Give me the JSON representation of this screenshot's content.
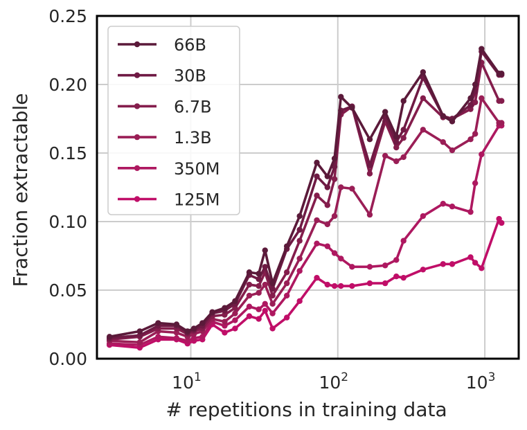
{
  "chart_data": {
    "type": "line",
    "xlabel": "# repetitions in training data",
    "ylabel": "Fraction extractable",
    "xscale": "log",
    "xlim": [
      2.3,
      1700
    ],
    "ylim": [
      0,
      0.25
    ],
    "x_ticks": [
      {
        "value": 10,
        "base": "10",
        "exp": "1"
      },
      {
        "value": 100,
        "base": "10",
        "exp": "2"
      },
      {
        "value": 1000,
        "base": "10",
        "exp": "3"
      }
    ],
    "y_ticks": [
      {
        "value": 0.0,
        "label": "0.00"
      },
      {
        "value": 0.05,
        "label": "0.05"
      },
      {
        "value": 0.1,
        "label": "0.10"
      },
      {
        "value": 0.15,
        "label": "0.15"
      },
      {
        "value": 0.2,
        "label": "0.20"
      },
      {
        "value": 0.25,
        "label": "0.25"
      }
    ],
    "grid": true,
    "legend_position": "top-left",
    "x": [
      2.8,
      4.5,
      6.0,
      8.0,
      9.5,
      10.5,
      12.0,
      14.0,
      17.0,
      20.0,
      25.0,
      29.0,
      32.0,
      36.0,
      45.0,
      55.0,
      72.0,
      85.0,
      95.0,
      105.0,
      125.0,
      165.0,
      210.0,
      250.0,
      280.0,
      380.0,
      520.0,
      600.0,
      800.0,
      860.0,
      950.0,
      1250.0,
      1300.0
    ],
    "series": [
      {
        "name": "66B",
        "color": "#5b1a3a",
        "values": [
          0.016,
          0.02,
          0.026,
          0.025,
          0.02,
          0.022,
          0.026,
          0.034,
          0.037,
          0.042,
          0.063,
          0.062,
          0.079,
          0.055,
          0.082,
          0.104,
          0.143,
          0.133,
          0.146,
          0.191,
          0.183,
          0.16,
          0.18,
          0.162,
          0.188,
          0.209,
          0.177,
          0.173,
          0.19,
          0.2,
          0.226,
          0.208,
          0.208
        ]
      },
      {
        "name": "30B",
        "color": "#6f1a44",
        "values": [
          0.015,
          0.017,
          0.024,
          0.024,
          0.019,
          0.021,
          0.024,
          0.033,
          0.035,
          0.04,
          0.061,
          0.058,
          0.067,
          0.051,
          0.08,
          0.094,
          0.133,
          0.125,
          0.14,
          0.181,
          0.184,
          0.141,
          0.176,
          0.158,
          0.167,
          0.205,
          0.177,
          0.175,
          0.185,
          0.195,
          0.224,
          0.207,
          0.207
        ]
      },
      {
        "name": "6.7B",
        "color": "#841d4c",
        "values": [
          0.014,
          0.016,
          0.022,
          0.022,
          0.018,
          0.02,
          0.022,
          0.031,
          0.032,
          0.037,
          0.054,
          0.053,
          0.063,
          0.046,
          0.063,
          0.086,
          0.119,
          0.112,
          0.131,
          0.178,
          0.184,
          0.135,
          0.173,
          0.154,
          0.161,
          0.19,
          0.176,
          0.175,
          0.182,
          0.187,
          0.216,
          0.188,
          0.188
        ]
      },
      {
        "name": "1.3B",
        "color": "#9a1e56",
        "values": [
          0.013,
          0.012,
          0.02,
          0.019,
          0.016,
          0.018,
          0.02,
          0.029,
          0.027,
          0.033,
          0.046,
          0.048,
          0.054,
          0.04,
          0.055,
          0.073,
          0.101,
          0.098,
          0.104,
          0.125,
          0.124,
          0.105,
          0.148,
          0.144,
          0.147,
          0.167,
          0.158,
          0.152,
          0.16,
          0.164,
          0.19,
          0.172,
          0.172
        ]
      },
      {
        "name": "350M",
        "color": "#ae1860",
        "values": [
          0.011,
          0.01,
          0.016,
          0.015,
          0.013,
          0.015,
          0.016,
          0.027,
          0.024,
          0.028,
          0.038,
          0.036,
          0.04,
          0.033,
          0.046,
          0.064,
          0.084,
          0.082,
          0.077,
          0.073,
          0.067,
          0.067,
          0.068,
          0.072,
          0.086,
          0.104,
          0.113,
          0.111,
          0.107,
          0.128,
          0.149,
          0.17,
          0.17
        ]
      },
      {
        "name": "125M",
        "color": "#c00e68",
        "values": [
          0.01,
          0.008,
          0.014,
          0.014,
          0.011,
          0.013,
          0.014,
          0.025,
          0.019,
          0.022,
          0.031,
          0.029,
          0.035,
          0.022,
          0.03,
          0.042,
          0.059,
          0.054,
          0.053,
          0.053,
          0.053,
          0.055,
          0.055,
          0.06,
          0.059,
          0.065,
          0.069,
          0.069,
          0.074,
          0.07,
          0.066,
          0.102,
          0.099
        ]
      }
    ]
  }
}
